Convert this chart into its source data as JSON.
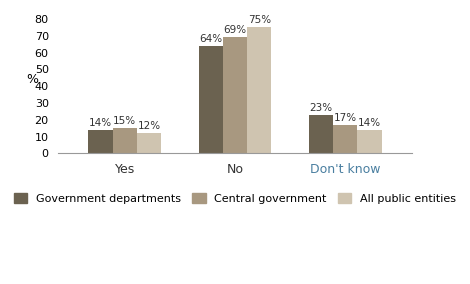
{
  "categories": [
    "Yes",
    "No",
    "Don't know"
  ],
  "series": {
    "Government departments": [
      14,
      64,
      23
    ],
    "Central government": [
      15,
      69,
      17
    ],
    "All public entities": [
      12,
      75,
      14
    ]
  },
  "colors": {
    "Government departments": "#6b6250",
    "Central government": "#a89880",
    "All public entities": "#cfc4b0"
  },
  "ylabel": "%",
  "ylim": [
    0,
    80
  ],
  "yticks": [
    0,
    10,
    20,
    30,
    40,
    50,
    60,
    70,
    80
  ],
  "bar_width": 0.22,
  "label_color_yes_no": "#5a5040",
  "label_color_dontknow": "#5a7a9a",
  "xtick_color_yes_no": "#333333",
  "xtick_color_dontknow": "#4a7fa0",
  "background_color": "#ffffff",
  "legend_fontsize": 8,
  "value_fontsize": 7.5
}
